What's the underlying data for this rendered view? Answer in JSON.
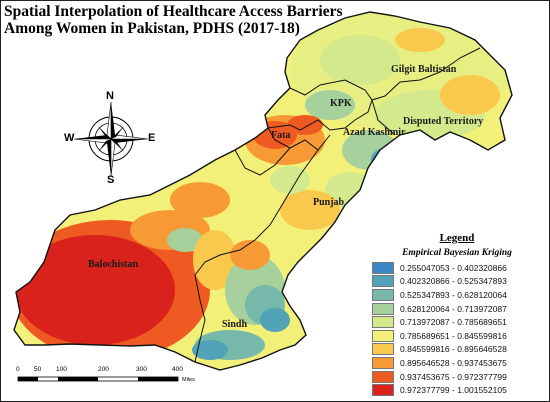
{
  "title": "Spatial Interpolation of Healthcare Access Barriers Among Women in Pakistan, PDHS (2017-18)",
  "regions": {
    "gilgit": "Gilgit Baltistan",
    "kpk": "KPK",
    "azad_kashmir": "Azad Kashmir",
    "disputed": "Disputed Territory",
    "fata": "Fata",
    "punjab": "Punjab",
    "balochistan": "Balochistan",
    "sindh": "Sindh"
  },
  "compass": {
    "n": "N",
    "s": "S",
    "e": "E",
    "w": "W"
  },
  "legend": {
    "title": "Legend",
    "subtitle": "Empirical Bayesian Kriging",
    "items": [
      {
        "label": "0.255047053 - 0.402320866",
        "color": "#3b86c4"
      },
      {
        "label": "0.402320866 - 0.525347893",
        "color": "#52a3b8"
      },
      {
        "label": "0.525347893 - 0.628120064",
        "color": "#76b8a9"
      },
      {
        "label": "0.628120064 - 0.713972087",
        "color": "#a6d09c"
      },
      {
        "label": "0.713972087 - 0.785689651",
        "color": "#d4e98c"
      },
      {
        "label": "0.785689651 - 0.845599816",
        "color": "#f3f07a"
      },
      {
        "label": "0.845599816 - 0.895646528",
        "color": "#f9c94d"
      },
      {
        "label": "0.895646528 - 0.937453675",
        "color": "#f79a35"
      },
      {
        "label": "0.937453675 - 0.972377799",
        "color": "#ef5a22"
      },
      {
        "label": "0.972377799 - 1.001552105",
        "color": "#d9221b"
      }
    ]
  },
  "scale": {
    "ticks": [
      "0",
      "50",
      "100",
      "200",
      "300",
      "400"
    ],
    "unit": "Miles"
  }
}
